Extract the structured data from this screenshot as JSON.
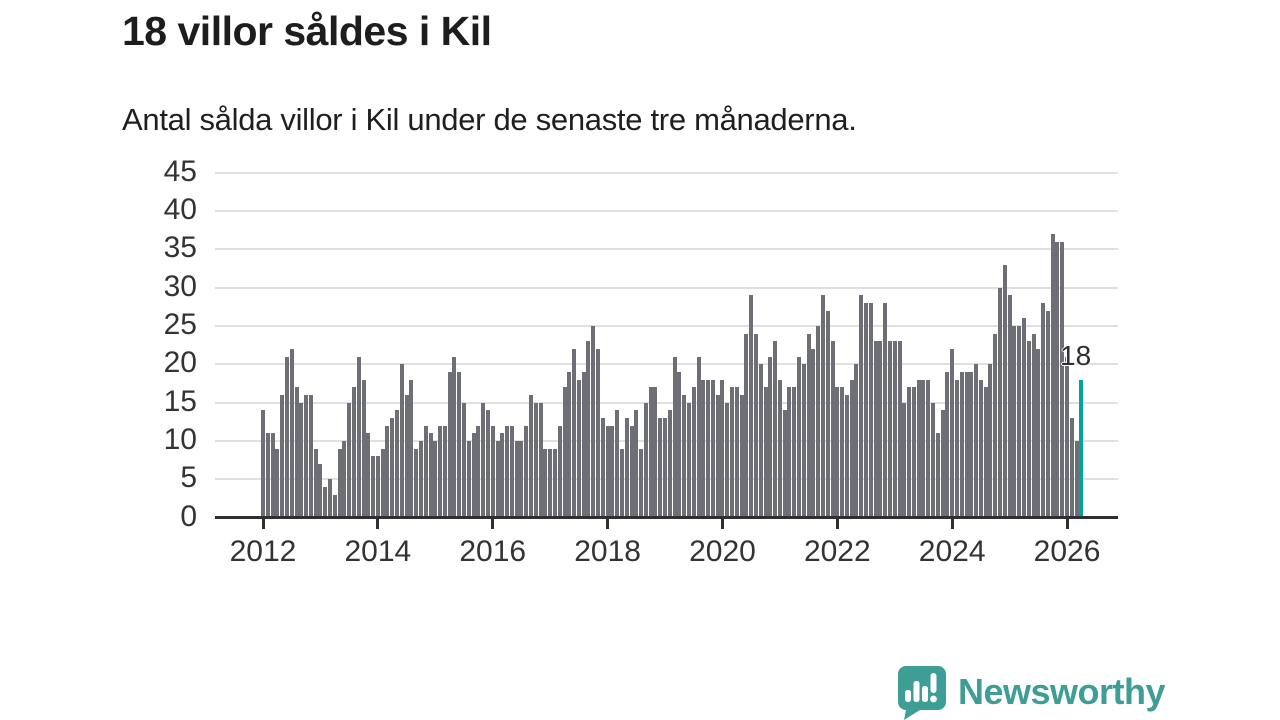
{
  "header": {
    "title": "18 villor såldes i Kil",
    "subtitle": "Antal sålda villor i Kil under de senaste tre månaderna."
  },
  "annotation": {
    "label": "18"
  },
  "branding": {
    "name": "Newsworthy",
    "logo_color": "#3e9d95"
  },
  "chart_data": {
    "type": "bar",
    "title": "18 villor såldes i Kil",
    "subtitle": "Antal sålda villor i Kil under de senaste tre månaderna.",
    "unit": "villor (rullande 3 månader)",
    "start_year": 2012,
    "frequency": "monthly",
    "values": [
      14,
      11,
      11,
      9,
      16,
      21,
      22,
      17,
      15,
      16,
      16,
      9,
      7,
      4,
      5,
      3,
      9,
      10,
      15,
      17,
      21,
      18,
      11,
      8,
      8,
      9,
      12,
      13,
      14,
      20,
      16,
      18,
      9,
      10,
      12,
      11,
      10,
      12,
      12,
      19,
      21,
      19,
      15,
      10,
      11,
      12,
      15,
      14,
      12,
      10,
      11,
      12,
      12,
      10,
      10,
      12,
      16,
      15,
      15,
      9,
      9,
      9,
      12,
      17,
      19,
      22,
      18,
      19,
      23,
      25,
      22,
      13,
      12,
      12,
      14,
      9,
      13,
      12,
      14,
      9,
      15,
      17,
      17,
      13,
      13,
      14,
      21,
      19,
      16,
      15,
      17,
      21,
      18,
      18,
      18,
      16,
      18,
      15,
      17,
      17,
      16,
      24,
      29,
      24,
      20,
      17,
      21,
      23,
      18,
      14,
      17,
      17,
      21,
      20,
      24,
      22,
      25,
      29,
      27,
      23,
      17,
      17,
      16,
      18,
      20,
      29,
      28,
      28,
      23,
      23,
      28,
      23,
      23,
      23,
      15,
      17,
      17,
      18,
      18,
      18,
      15,
      11,
      14,
      19,
      22,
      18,
      19,
      19,
      19,
      20,
      18,
      17,
      20,
      24,
      30,
      33,
      29,
      25,
      25,
      26,
      23,
      24,
      22,
      28,
      27,
      37,
      36,
      36,
      21,
      13,
      10,
      18
    ],
    "highlight_last": true,
    "highlight_value": 18,
    "highlight_label": "18",
    "y_ticks": [
      0,
      5,
      10,
      15,
      20,
      25,
      30,
      35,
      40,
      45
    ],
    "ylim": [
      0,
      45
    ],
    "x_ticks": [
      "2012",
      "2014",
      "2016",
      "2018",
      "2020",
      "2022",
      "2024",
      "2026"
    ],
    "grid": "horizontal",
    "legend": "none",
    "bar_color": "#6e6e76",
    "highlight_color": "#00a49c",
    "axis_color": "#2f2f2f",
    "gridline_color": "#e0e0e0"
  }
}
